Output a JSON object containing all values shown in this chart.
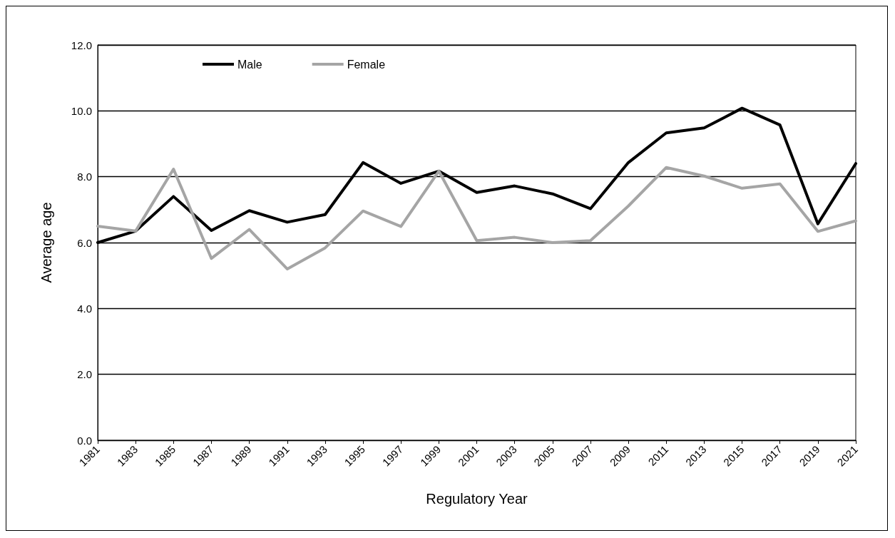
{
  "chart_data": {
    "type": "line",
    "xlabel": "Regulatory Year",
    "ylabel": "Average age",
    "categories": [
      "1981",
      "1983",
      "1985",
      "1987",
      "1989",
      "1991",
      "1993",
      "1995",
      "1997",
      "1999",
      "2001",
      "2003",
      "2005",
      "2007",
      "2009",
      "2011",
      "2013",
      "2015",
      "2017",
      "2019",
      "2021"
    ],
    "series": [
      {
        "name": "Male",
        "color": "#000000",
        "values": [
          6.0,
          6.35,
          7.4,
          6.37,
          6.97,
          6.62,
          6.85,
          8.43,
          7.8,
          8.17,
          7.52,
          7.72,
          7.48,
          7.03,
          8.43,
          9.33,
          9.48,
          10.08,
          9.57,
          6.57,
          8.4
        ]
      },
      {
        "name": "Female",
        "color": "#a5a5a5",
        "values": [
          6.5,
          6.35,
          8.23,
          5.52,
          6.4,
          5.2,
          5.84,
          6.96,
          6.49,
          8.17,
          6.06,
          6.16,
          6.0,
          6.06,
          7.11,
          8.28,
          8.02,
          7.65,
          7.78,
          6.34,
          6.66
        ]
      }
    ],
    "ylim": [
      0,
      12
    ],
    "yticks": [
      {
        "value": 0,
        "label": "0.0"
      },
      {
        "value": 2,
        "label": "2.0"
      },
      {
        "value": 4,
        "label": "4.0"
      },
      {
        "value": 6,
        "label": "6.0"
      },
      {
        "value": 8,
        "label": "8.0"
      },
      {
        "value": 10,
        "label": "10.0"
      },
      {
        "value": 12,
        "label": "12.0"
      }
    ],
    "grid": "y",
    "legend": "top left",
    "marker": "none",
    "line_style": "solid"
  }
}
